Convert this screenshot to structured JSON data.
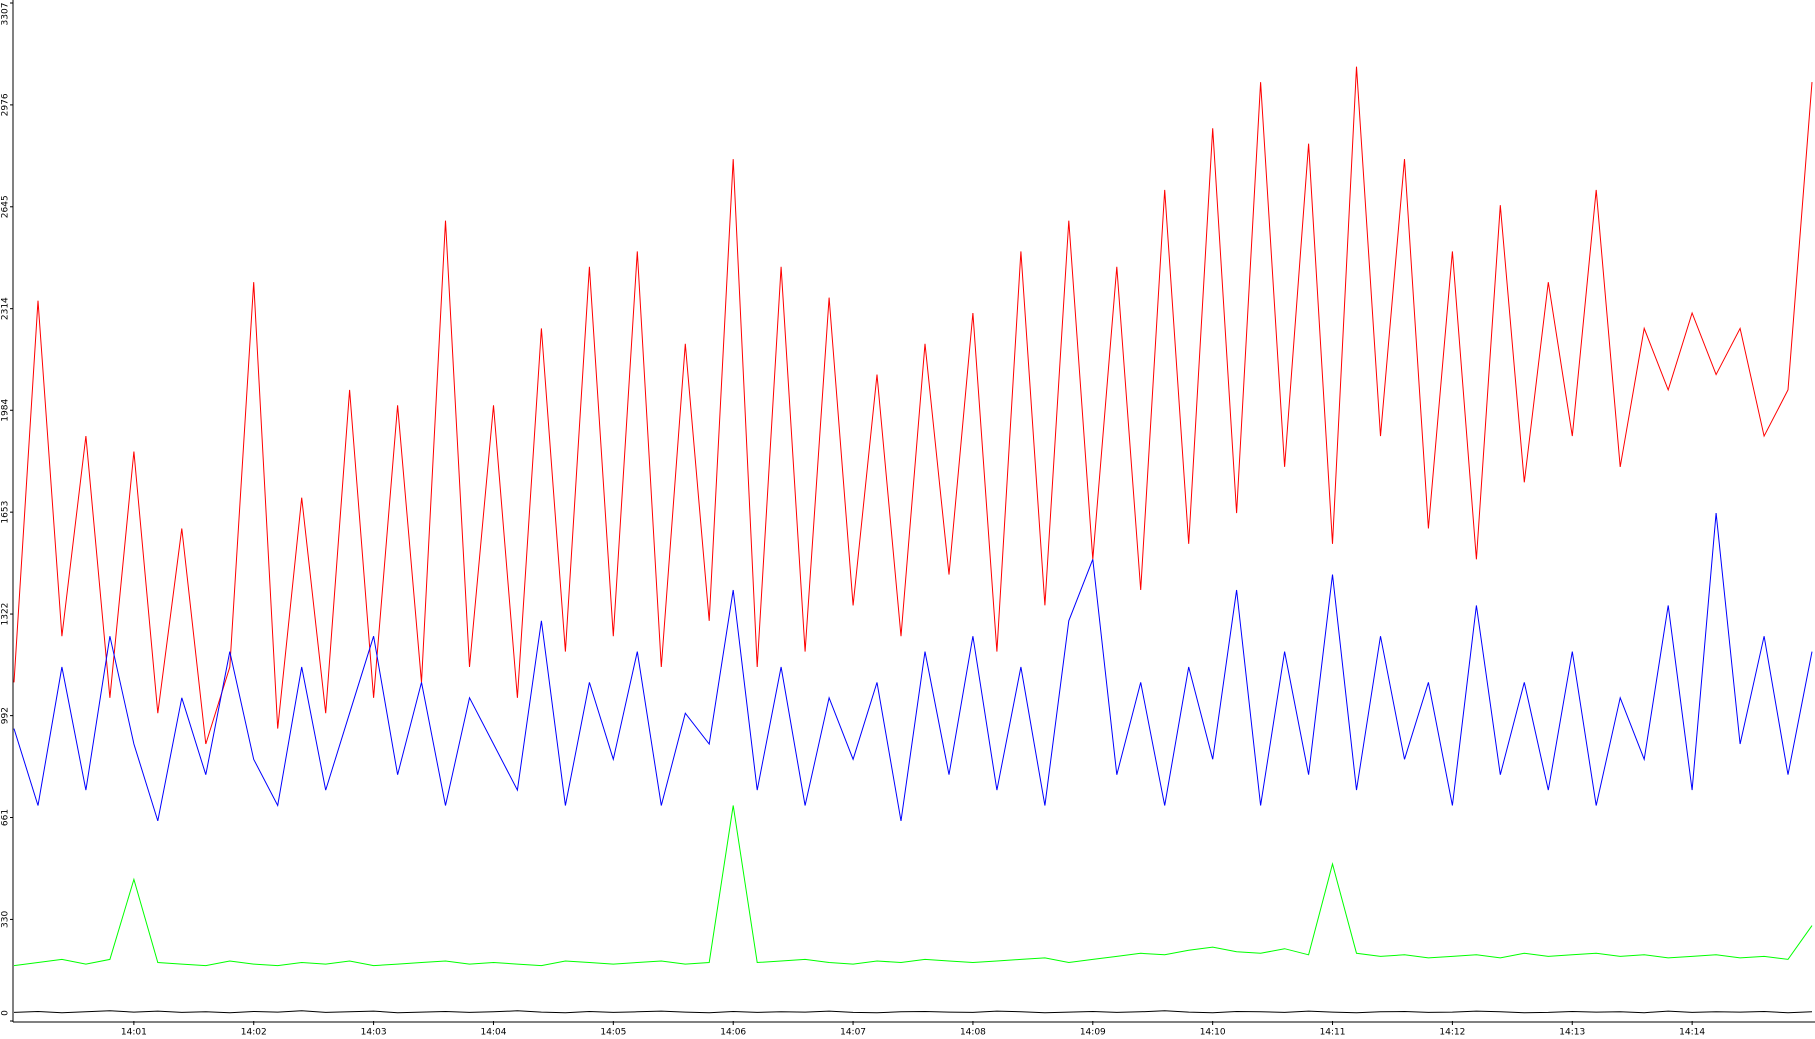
{
  "chart_data": {
    "type": "line",
    "categories": [
      null,
      null,
      null,
      null,
      null,
      "14:01",
      null,
      null,
      null,
      null,
      "14:02",
      null,
      null,
      null,
      null,
      "14:03",
      null,
      null,
      null,
      null,
      "14:04",
      null,
      null,
      null,
      null,
      "14:05",
      null,
      null,
      null,
      null,
      "14:06",
      null,
      null,
      null,
      null,
      "14:07",
      null,
      null,
      null,
      null,
      "14:08",
      null,
      null,
      null,
      null,
      "14:09",
      null,
      null,
      null,
      null,
      "14:10",
      null,
      null,
      null,
      null,
      "14:11",
      null,
      null,
      null,
      null,
      "14:12",
      null,
      null,
      null,
      null,
      "14:13",
      null,
      null,
      null,
      null,
      "14:14",
      null,
      null,
      null,
      null,
      null
    ],
    "ylim": [
      0,
      3307
    ],
    "yticks": [
      0,
      330,
      661,
      992,
      1322,
      1653,
      1984,
      2314,
      2645,
      2976,
      3307
    ],
    "series": [
      {
        "color": "#ff0000",
        "values": [
          1100,
          2340,
          1250,
          1900,
          1050,
          1850,
          1000,
          1600,
          900,
          1150,
          2400,
          950,
          1700,
          1000,
          2050,
          1050,
          2000,
          1100,
          2600,
          1150,
          2000,
          1050,
          2250,
          1200,
          2450,
          1250,
          2500,
          1150,
          2200,
          1300,
          2800,
          1150,
          2450,
          1200,
          2350,
          1350,
          2100,
          1250,
          2200,
          1450,
          2300,
          1200,
          2500,
          1350,
          2600,
          1500,
          2450,
          1400,
          2700,
          1550,
          2900,
          1650,
          3050,
          1800,
          2850,
          1550,
          3100,
          1900,
          2800,
          1600,
          2500,
          1500,
          2650,
          1750,
          2400,
          1900,
          2700,
          1800,
          2250,
          2050,
          2300,
          2100,
          2250,
          1900,
          2050,
          3050
        ]
      },
      {
        "color": "#0000ff",
        "values": [
          950,
          700,
          1150,
          750,
          1250,
          900,
          650,
          1050,
          800,
          1200,
          850,
          700,
          1150,
          750,
          1000,
          1250,
          800,
          1100,
          700,
          1050,
          900,
          750,
          1300,
          700,
          1100,
          850,
          1200,
          700,
          1000,
          900,
          1400,
          750,
          1150,
          700,
          1050,
          850,
          1100,
          650,
          1200,
          800,
          1250,
          750,
          1150,
          700,
          1300,
          1500,
          800,
          1100,
          700,
          1150,
          850,
          1400,
          700,
          1200,
          800,
          1450,
          750,
          1250,
          850,
          1100,
          700,
          1350,
          800,
          1100,
          750,
          1200,
          700,
          1050,
          850,
          1350,
          750,
          1650,
          900,
          1250,
          800,
          1200
        ]
      },
      {
        "color": "#00ff00",
        "values": [
          180,
          190,
          200,
          185,
          200,
          460,
          190,
          185,
          180,
          195,
          185,
          180,
          190,
          185,
          195,
          180,
          185,
          190,
          195,
          185,
          190,
          185,
          180,
          195,
          190,
          185,
          190,
          195,
          185,
          190,
          700,
          190,
          195,
          200,
          190,
          185,
          195,
          190,
          200,
          195,
          190,
          195,
          200,
          205,
          190,
          200,
          210,
          220,
          215,
          230,
          240,
          225,
          220,
          235,
          215,
          510,
          220,
          210,
          215,
          205,
          210,
          215,
          205,
          220,
          210,
          215,
          220,
          210,
          215,
          205,
          210,
          215,
          205,
          210,
          200,
          310
        ]
      },
      {
        "color": "#000000",
        "values": [
          28,
          31,
          27,
          30,
          33,
          29,
          32,
          28,
          30,
          27,
          31,
          29,
          33,
          28,
          30,
          32,
          27,
          29,
          31,
          28,
          30,
          33,
          29,
          27,
          31,
          28,
          30,
          32,
          29,
          27,
          31,
          28,
          30,
          29,
          32,
          28,
          27,
          30,
          31,
          29,
          28,
          32,
          30,
          27,
          29,
          31,
          28,
          30,
          33,
          29,
          27,
          31,
          30,
          28,
          32,
          29,
          27,
          30,
          31,
          28,
          29,
          32,
          30,
          27,
          28,
          31,
          29,
          30,
          27,
          32,
          28,
          30,
          29,
          31,
          27,
          30
        ]
      }
    ]
  }
}
